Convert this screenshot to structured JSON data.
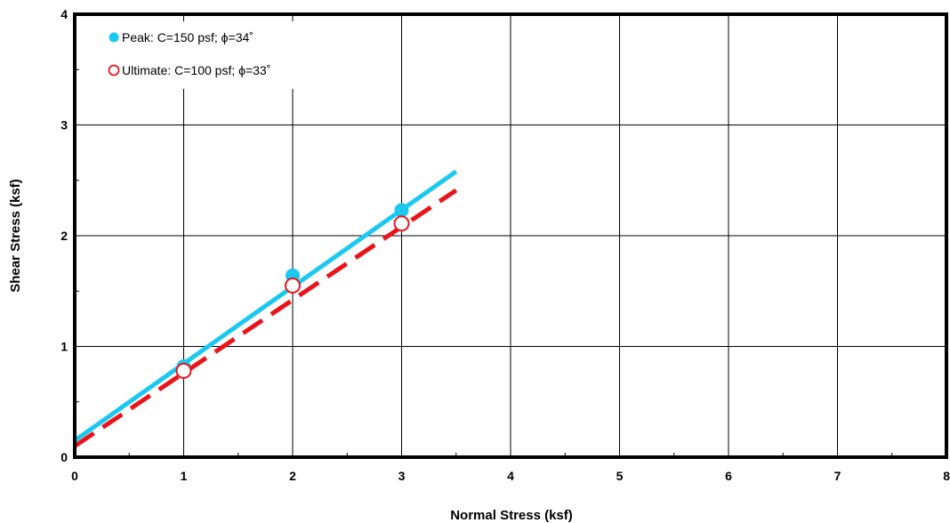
{
  "chart_data": {
    "type": "scatter",
    "title": "",
    "xlabel": "Normal Stress (ksf)",
    "ylabel": "Shear Stress (ksf)",
    "xlim": [
      0,
      8
    ],
    "ylim": [
      0,
      4
    ],
    "xticks": [
      "0",
      "1",
      "2",
      "3",
      "4",
      "5",
      "6",
      "7",
      "8"
    ],
    "yticks": [
      "0",
      "1",
      "2",
      "3",
      "4"
    ],
    "grid": true,
    "legend_position": "top-left",
    "series": [
      {
        "name": "Peak: C=150 psf; ϕ=34˚",
        "marker": "filled-circle",
        "color": "#1ac8f0",
        "points": [
          [
            1,
            0.82
          ],
          [
            2,
            1.64
          ],
          [
            3,
            2.23
          ]
        ],
        "fit_line": {
          "x": [
            0,
            3.5
          ],
          "y": [
            0.15,
            2.58
          ],
          "style": "solid"
        }
      },
      {
        "name": "Ultimate: C=100 psf; ϕ=33˚",
        "marker": "open-circle",
        "color": "#e8141a",
        "points": [
          [
            1,
            0.78
          ],
          [
            2,
            1.55
          ],
          [
            3,
            2.11
          ]
        ],
        "fit_line": {
          "x": [
            0,
            3.5
          ],
          "y": [
            0.1,
            2.41
          ],
          "style": "dashed"
        }
      }
    ]
  }
}
